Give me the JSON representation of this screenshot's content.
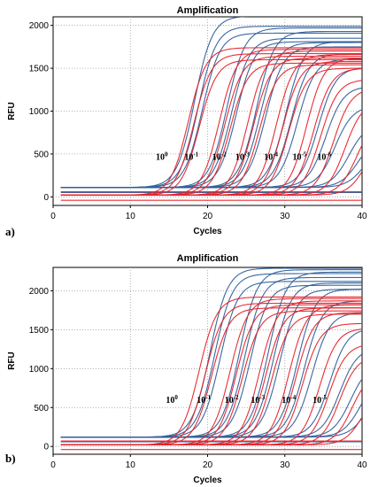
{
  "colors": {
    "blue": "#2f5f9a",
    "red": "#e8222a",
    "grid": "#9a9a9a"
  },
  "chart_data": [
    {
      "type": "line",
      "title": "Amplification",
      "xlabel": "Cycles",
      "ylabel": "RFU",
      "panel_label": "a)",
      "xlim": [
        0,
        40
      ],
      "ylim": [
        -100,
        2100
      ],
      "xticks": [
        "0",
        "10",
        "20",
        "30",
        "40"
      ],
      "yticks": [
        "0",
        "500",
        "1000",
        "1500",
        "2000"
      ],
      "grid": true,
      "annotations": [
        {
          "base": "10",
          "exp": "0",
          "x": 13.3,
          "y": 430
        },
        {
          "base": "10",
          "exp": "-1",
          "x": 17.0,
          "y": 430
        },
        {
          "base": "10",
          "exp": "-2",
          "x": 20.6,
          "y": 430
        },
        {
          "base": "10",
          "exp": "-3",
          "x": 23.6,
          "y": 430
        },
        {
          "base": "10",
          "exp": "-4",
          "x": 27.3,
          "y": 430
        },
        {
          "base": "10",
          "exp": "-5",
          "x": 31.0,
          "y": 430
        },
        {
          "base": "10",
          "exp": "-6",
          "x": 34.2,
          "y": 430
        }
      ],
      "series": [
        {
          "color": "blue",
          "baseline": 110,
          "ct": 17.0,
          "plateau": 2000
        },
        {
          "color": "blue",
          "baseline": 110,
          "ct": 17.5,
          "plateau": 1880
        },
        {
          "color": "blue",
          "baseline": 110,
          "ct": 18.0,
          "plateau": 1800
        },
        {
          "color": "blue",
          "baseline": 110,
          "ct": 21.2,
          "plateau": 1860
        },
        {
          "color": "blue",
          "baseline": 110,
          "ct": 21.8,
          "plateau": 1740
        },
        {
          "color": "blue",
          "baseline": 110,
          "ct": 22.4,
          "plateau": 1700
        },
        {
          "color": "blue",
          "baseline": 110,
          "ct": 25.0,
          "plateau": 1820
        },
        {
          "color": "blue",
          "baseline": 110,
          "ct": 25.5,
          "plateau": 1690
        },
        {
          "color": "blue",
          "baseline": 110,
          "ct": 26.2,
          "plateau": 1640
        },
        {
          "color": "blue",
          "baseline": 110,
          "ct": 28.8,
          "plateau": 1700
        },
        {
          "color": "blue",
          "baseline": 110,
          "ct": 29.5,
          "plateau": 1560
        },
        {
          "color": "blue",
          "baseline": 110,
          "ct": 30.3,
          "plateau": 1500
        },
        {
          "color": "blue",
          "baseline": 110,
          "ct": 33.0,
          "plateau": 1400
        },
        {
          "color": "blue",
          "baseline": 110,
          "ct": 34.0,
          "plateau": 1180
        },
        {
          "color": "blue",
          "baseline": 110,
          "ct": 35.2,
          "plateau": 950
        },
        {
          "color": "blue",
          "baseline": 110,
          "ct": 37.0,
          "plateau": 750
        },
        {
          "color": "blue",
          "baseline": 110,
          "ct": 38.2,
          "plateau": 600
        },
        {
          "color": "blue",
          "baseline": 110,
          "ct": 39.0,
          "plateau": 500
        },
        {
          "color": "blue",
          "baseline": 50,
          "ct": 0,
          "plateau": 0
        },
        {
          "color": "red",
          "baseline": 20,
          "ct": 16.2,
          "plateau": 1720
        },
        {
          "color": "red",
          "baseline": 20,
          "ct": 16.9,
          "plateau": 1650
        },
        {
          "color": "red",
          "baseline": 20,
          "ct": 17.6,
          "plateau": 1580
        },
        {
          "color": "red",
          "baseline": 20,
          "ct": 20.2,
          "plateau": 1700
        },
        {
          "color": "red",
          "baseline": 20,
          "ct": 20.9,
          "plateau": 1620
        },
        {
          "color": "red",
          "baseline": 20,
          "ct": 21.6,
          "plateau": 1540
        },
        {
          "color": "red",
          "baseline": 20,
          "ct": 23.9,
          "plateau": 1680
        },
        {
          "color": "red",
          "baseline": 20,
          "ct": 24.6,
          "plateau": 1600
        },
        {
          "color": "red",
          "baseline": 20,
          "ct": 25.4,
          "plateau": 1520
        },
        {
          "color": "red",
          "baseline": 20,
          "ct": 27.6,
          "plateau": 1640
        },
        {
          "color": "red",
          "baseline": 20,
          "ct": 28.4,
          "plateau": 1560
        },
        {
          "color": "red",
          "baseline": 20,
          "ct": 29.2,
          "plateau": 1480
        },
        {
          "color": "red",
          "baseline": 20,
          "ct": 31.5,
          "plateau": 1600
        },
        {
          "color": "red",
          "baseline": 20,
          "ct": 32.4,
          "plateau": 1480
        },
        {
          "color": "red",
          "baseline": 20,
          "ct": 33.3,
          "plateau": 1350
        },
        {
          "color": "red",
          "baseline": 20,
          "ct": 35.0,
          "plateau": 1250
        },
        {
          "color": "red",
          "baseline": 20,
          "ct": 36.5,
          "plateau": 1100
        },
        {
          "color": "red",
          "baseline": 20,
          "ct": 38.0,
          "plateau": 900
        },
        {
          "color": "red",
          "baseline": 20,
          "ct": 39.2,
          "plateau": 700
        },
        {
          "color": "red",
          "baseline": -40,
          "ct": 0,
          "plateau": 0
        },
        {
          "color": "red",
          "baseline": 60,
          "ct": 0,
          "plateau": 0
        }
      ]
    },
    {
      "type": "line",
      "title": "Amplification",
      "xlabel": "Cycles",
      "ylabel": "RFU",
      "panel_label": "b)",
      "xlim": [
        0,
        40
      ],
      "ylim": [
        -100,
        2300
      ],
      "xticks": [
        "0",
        "10",
        "20",
        "30",
        "40"
      ],
      "yticks": [
        "0",
        "500",
        "1000",
        "1500",
        "2000"
      ],
      "grid": true,
      "annotations": [
        {
          "base": "10",
          "exp": "0",
          "x": 14.6,
          "y": 560
        },
        {
          "base": "10",
          "exp": "-1",
          "x": 18.6,
          "y": 560
        },
        {
          "base": "10",
          "exp": "-2",
          "x": 22.2,
          "y": 560
        },
        {
          "base": "10",
          "exp": "-3",
          "x": 25.6,
          "y": 560
        },
        {
          "base": "10",
          "exp": "-4",
          "x": 29.6,
          "y": 560
        },
        {
          "base": "10",
          "exp": "-5",
          "x": 33.6,
          "y": 560
        }
      ],
      "series": [
        {
          "color": "blue",
          "baseline": 120,
          "ct": 19.0,
          "plateau": 2170
        },
        {
          "color": "blue",
          "baseline": 120,
          "ct": 19.6,
          "plateau": 2100
        },
        {
          "color": "blue",
          "baseline": 120,
          "ct": 20.3,
          "plateau": 2000
        },
        {
          "color": "blue",
          "baseline": 120,
          "ct": 22.8,
          "plateau": 2150
        },
        {
          "color": "blue",
          "baseline": 120,
          "ct": 23.5,
          "plateau": 2050
        },
        {
          "color": "blue",
          "baseline": 120,
          "ct": 24.2,
          "plateau": 1950
        },
        {
          "color": "blue",
          "baseline": 120,
          "ct": 26.5,
          "plateau": 2120
        },
        {
          "color": "blue",
          "baseline": 120,
          "ct": 27.2,
          "plateau": 1980
        },
        {
          "color": "blue",
          "baseline": 120,
          "ct": 28.0,
          "plateau": 1900
        },
        {
          "color": "blue",
          "baseline": 120,
          "ct": 30.3,
          "plateau": 1900
        },
        {
          "color": "blue",
          "baseline": 120,
          "ct": 31.2,
          "plateau": 1750
        },
        {
          "color": "blue",
          "baseline": 120,
          "ct": 32.2,
          "plateau": 1600
        },
        {
          "color": "blue",
          "baseline": 120,
          "ct": 34.5,
          "plateau": 1400
        },
        {
          "color": "blue",
          "baseline": 120,
          "ct": 35.8,
          "plateau": 1150
        },
        {
          "color": "blue",
          "baseline": 120,
          "ct": 37.2,
          "plateau": 950
        },
        {
          "color": "blue",
          "baseline": 120,
          "ct": 38.5,
          "plateau": 800
        },
        {
          "color": "blue",
          "baseline": 120,
          "ct": 39.3,
          "plateau": 650
        },
        {
          "color": "blue",
          "baseline": 60,
          "ct": 0,
          "plateau": 0
        },
        {
          "color": "red",
          "baseline": 20,
          "ct": 17.6,
          "plateau": 1900
        },
        {
          "color": "red",
          "baseline": 20,
          "ct": 18.4,
          "plateau": 1820
        },
        {
          "color": "red",
          "baseline": 20,
          "ct": 19.2,
          "plateau": 1760
        },
        {
          "color": "red",
          "baseline": 20,
          "ct": 21.6,
          "plateau": 1880
        },
        {
          "color": "red",
          "baseline": 20,
          "ct": 22.4,
          "plateau": 1800
        },
        {
          "color": "red",
          "baseline": 20,
          "ct": 23.2,
          "plateau": 1720
        },
        {
          "color": "red",
          "baseline": 20,
          "ct": 25.4,
          "plateau": 1850
        },
        {
          "color": "red",
          "baseline": 20,
          "ct": 26.2,
          "plateau": 1760
        },
        {
          "color": "red",
          "baseline": 20,
          "ct": 27.0,
          "plateau": 1680
        },
        {
          "color": "red",
          "baseline": 20,
          "ct": 29.2,
          "plateau": 1800
        },
        {
          "color": "red",
          "baseline": 20,
          "ct": 30.1,
          "plateau": 1700
        },
        {
          "color": "red",
          "baseline": 20,
          "ct": 31.0,
          "plateau": 1560
        },
        {
          "color": "red",
          "baseline": 20,
          "ct": 33.2,
          "plateau": 1500
        },
        {
          "color": "red",
          "baseline": 20,
          "ct": 34.4,
          "plateau": 1300
        },
        {
          "color": "red",
          "baseline": 20,
          "ct": 35.8,
          "plateau": 1150
        },
        {
          "color": "red",
          "baseline": 20,
          "ct": 37.4,
          "plateau": 950
        },
        {
          "color": "red",
          "baseline": 20,
          "ct": 38.8,
          "plateau": 750
        },
        {
          "color": "red",
          "baseline": -40,
          "ct": 0,
          "plateau": 0
        },
        {
          "color": "red",
          "baseline": 70,
          "ct": 0,
          "plateau": 0
        }
      ]
    }
  ]
}
